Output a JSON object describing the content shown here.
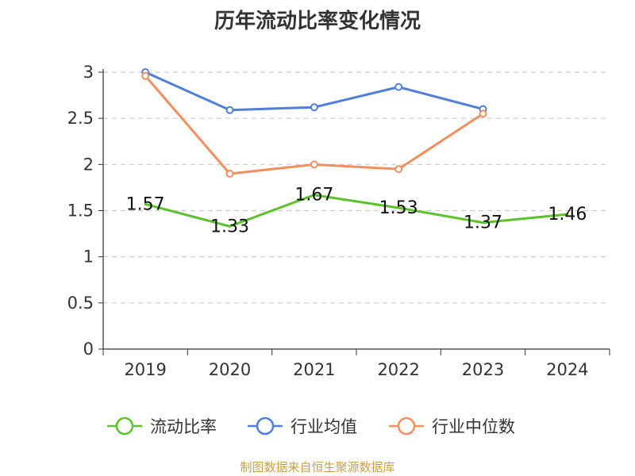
{
  "chart_data": {
    "type": "line",
    "title": "历年流动比率变化情况",
    "categories": [
      "2019",
      "2020",
      "2021",
      "2022",
      "2023",
      "2024"
    ],
    "ylim": [
      0,
      3
    ],
    "yticks": [
      0,
      0.5,
      1,
      1.5,
      2,
      2.5,
      3
    ],
    "ytick_labels": [
      "0",
      "0.5",
      "1",
      "1.5",
      "2",
      "2.5",
      "3"
    ],
    "grid": true,
    "legend_position": "bottom",
    "series": [
      {
        "name": "流动比率",
        "color": "#5bc22a",
        "values": [
          1.57,
          1.33,
          1.67,
          1.53,
          1.37,
          1.46
        ],
        "labels": [
          "1.57",
          "1.33",
          "1.67",
          "1.53",
          "1.37",
          "1.46"
        ]
      },
      {
        "name": "行业均值",
        "color": "#4f7fdc",
        "values": [
          3.0,
          2.59,
          2.62,
          2.84,
          2.6,
          null
        ]
      },
      {
        "name": "行业中位数",
        "color": "#f38f5f",
        "values": [
          2.96,
          1.9,
          2.0,
          1.95,
          2.55,
          null
        ]
      }
    ]
  },
  "footer": {
    "source": "制图数据来自恒生聚源数据库"
  }
}
